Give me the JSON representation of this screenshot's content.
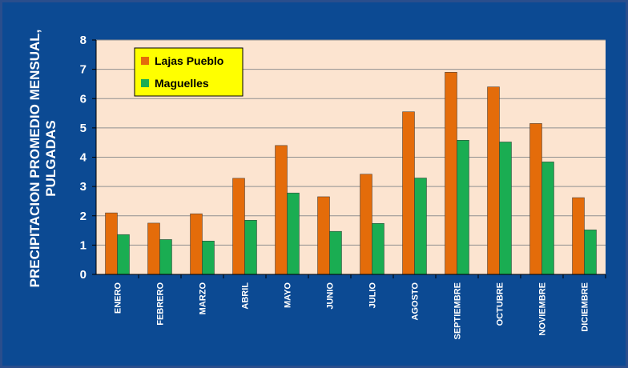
{
  "chart_data": {
    "type": "bar",
    "title": "",
    "xlabel": "",
    "ylabel_lines": [
      "PRECIPITACION PROMEDIO MENSUAL,",
      "PULGADAS"
    ],
    "categories": [
      "ENERO",
      "FEBRERO",
      "MARZO",
      "ABRIL",
      "MAYO",
      "JUNIO",
      "JULIO",
      "AGOSTO",
      "SEPTIEMBRE",
      "OCTUBRE",
      "NOVIEMBRE",
      "DICIEMBRE"
    ],
    "series": [
      {
        "name": "Lajas Pueblo",
        "color": "#e46c0a",
        "values": [
          2.1,
          1.75,
          2.07,
          3.28,
          4.4,
          2.65,
          3.42,
          5.55,
          6.9,
          6.4,
          5.15,
          2.62
        ]
      },
      {
        "name": "Maguelles",
        "color": "#1aad52",
        "values": [
          1.36,
          1.19,
          1.14,
          1.85,
          2.78,
          1.47,
          1.74,
          3.29,
          4.58,
          4.52,
          3.84,
          1.52
        ]
      }
    ],
    "ylim": [
      0,
      8
    ],
    "yticks": [
      0,
      1,
      2,
      3,
      4,
      5,
      6,
      7,
      8
    ],
    "grid": true,
    "legend_position": "top-left",
    "plot_background": "#fce4d0",
    "legend_background": "#ffff00",
    "page_background": "#0c4a93"
  }
}
